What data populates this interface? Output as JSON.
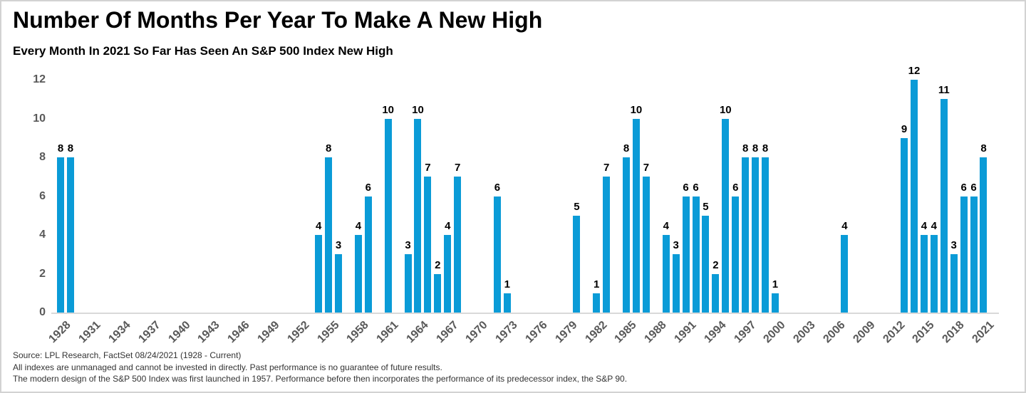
{
  "header": {
    "title": "Number Of Months Per Year To Make A New High",
    "subtitle": "Every Month In 2021 So Far Has Seen An S&P 500 Index New High"
  },
  "chart_data": {
    "type": "bar",
    "title": "Number Of Months Per Year To Make A New High",
    "subtitle": "Every Month In 2021 So Far Has Seen An S&P 500 Index New High",
    "xlabel": "",
    "ylabel": "",
    "x_range": [
      1928,
      2021
    ],
    "ylim": [
      0,
      12
    ],
    "y_ticks": [
      0,
      2,
      4,
      6,
      8,
      10,
      12
    ],
    "x_tick_labels": [
      1928,
      1931,
      1934,
      1937,
      1940,
      1943,
      1946,
      1949,
      1952,
      1955,
      1958,
      1961,
      1964,
      1967,
      1970,
      1973,
      1976,
      1979,
      1982,
      1985,
      1988,
      1991,
      1994,
      1997,
      2000,
      2003,
      2006,
      2009,
      2012,
      2015,
      2018,
      2021
    ],
    "grid": false,
    "legend": "none",
    "data_labels_shown": true,
    "bar_color": "#0a9bd7",
    "axis_label_color": "#595959",
    "value_label_color": "#000000",
    "bars": [
      {
        "year": 1928,
        "value": 8
      },
      {
        "year": 1929,
        "value": 8
      },
      {
        "year": 1954,
        "value": 4
      },
      {
        "year": 1955,
        "value": 8
      },
      {
        "year": 1956,
        "value": 3
      },
      {
        "year": 1958,
        "value": 4
      },
      {
        "year": 1959,
        "value": 6
      },
      {
        "year": 1961,
        "value": 10
      },
      {
        "year": 1963,
        "value": 3
      },
      {
        "year": 1964,
        "value": 10
      },
      {
        "year": 1965,
        "value": 7
      },
      {
        "year": 1966,
        "value": 2
      },
      {
        "year": 1967,
        "value": 4
      },
      {
        "year": 1968,
        "value": 7
      },
      {
        "year": 1972,
        "value": 6
      },
      {
        "year": 1973,
        "value": 1
      },
      {
        "year": 1980,
        "value": 5
      },
      {
        "year": 1982,
        "value": 1
      },
      {
        "year": 1983,
        "value": 7
      },
      {
        "year": 1985,
        "value": 8
      },
      {
        "year": 1986,
        "value": 10
      },
      {
        "year": 1987,
        "value": 7
      },
      {
        "year": 1989,
        "value": 4
      },
      {
        "year": 1990,
        "value": 3
      },
      {
        "year": 1991,
        "value": 6
      },
      {
        "year": 1992,
        "value": 6
      },
      {
        "year": 1993,
        "value": 5
      },
      {
        "year": 1994,
        "value": 2
      },
      {
        "year": 1995,
        "value": 10
      },
      {
        "year": 1996,
        "value": 6
      },
      {
        "year": 1997,
        "value": 8
      },
      {
        "year": 1998,
        "value": 8
      },
      {
        "year": 1999,
        "value": 8
      },
      {
        "year": 2000,
        "value": 1
      },
      {
        "year": 2007,
        "value": 4
      },
      {
        "year": 2013,
        "value": 9
      },
      {
        "year": 2014,
        "value": 12
      },
      {
        "year": 2015,
        "value": 4
      },
      {
        "year": 2016,
        "value": 4
      },
      {
        "year": 2017,
        "value": 11
      },
      {
        "year": 2018,
        "value": 3
      },
      {
        "year": 2019,
        "value": 6
      },
      {
        "year": 2020,
        "value": 6
      },
      {
        "year": 2021,
        "value": 8
      }
    ]
  },
  "footer": {
    "source_line": "Source: LPL Research, FactSet 08/24/2021 (1928 - Current)",
    "disclaimer_line1": "All indexes are unmanaged and cannot be invested in directly. Past performance is no guarantee of future results.",
    "disclaimer_line2": "The modern design of the S&P 500 Index was first launched in 1957. Performance before then incorporates the performance of its predecessor index, the S&P 90."
  }
}
